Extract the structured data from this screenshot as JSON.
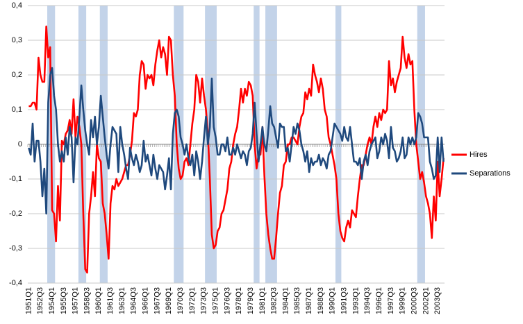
{
  "chart_data": {
    "type": "line",
    "categories": [
      "1951Q1",
      null,
      null,
      null,
      null,
      null,
      "1952Q3",
      null,
      null,
      null,
      null,
      null,
      "1954Q1",
      null,
      null,
      null,
      null,
      null,
      "1955Q3",
      null,
      null,
      null,
      null,
      null,
      "1957Q1",
      null,
      null,
      null,
      null,
      null,
      "1958Q3",
      null,
      null,
      null,
      null,
      null,
      "1960Q1",
      null,
      null,
      null,
      null,
      null,
      "1961Q3",
      null,
      null,
      null,
      null,
      null,
      "1963Q1",
      null,
      null,
      null,
      null,
      null,
      "1964Q3",
      null,
      null,
      null,
      null,
      null,
      "1966Q1",
      null,
      null,
      null,
      null,
      null,
      "1967Q3",
      null,
      null,
      null,
      null,
      null,
      "1969Q1",
      null,
      null,
      null,
      null,
      null,
      "1970Q3",
      null,
      null,
      null,
      null,
      null,
      "1972Q1",
      null,
      null,
      null,
      null,
      null,
      "1973Q3",
      null,
      null,
      null,
      null,
      null,
      "1975Q1",
      null,
      null,
      null,
      null,
      null,
      "1976Q3",
      null,
      null,
      null,
      null,
      null,
      "1978Q1",
      null,
      null,
      null,
      null,
      null,
      "1979Q3",
      null,
      null,
      null,
      null,
      null,
      "1981Q1",
      null,
      null,
      null,
      null,
      null,
      "1982Q3",
      null,
      null,
      null,
      null,
      null,
      "1984Q1",
      null,
      null,
      null,
      null,
      null,
      "1985Q3",
      null,
      null,
      null,
      null,
      null,
      "1987Q1",
      null,
      null,
      null,
      null,
      null,
      "1988Q3",
      null,
      null,
      null,
      null,
      null,
      "1990Q1",
      null,
      null,
      null,
      null,
      null,
      "1991Q3",
      null,
      null,
      null,
      null,
      null,
      "1993Q1",
      null,
      null,
      null,
      null,
      null,
      "1994Q3",
      null,
      null,
      null,
      null,
      null,
      "1996Q1",
      null,
      null,
      null,
      null,
      null,
      "1997Q3",
      null,
      null,
      null,
      null,
      null,
      "1999Q1",
      null,
      null,
      null,
      null,
      null,
      "2000Q3",
      null,
      null,
      null,
      null,
      null,
      "2002Q1",
      null,
      null,
      null,
      null,
      null,
      "2003Q3",
      null,
      null,
      null
    ],
    "series": [
      {
        "name": "Hires",
        "color": "#ff0000",
        "values": [
          0.11,
          0.11,
          0.12,
          0.12,
          0.1,
          0.25,
          0.2,
          0.18,
          0.18,
          0.34,
          0.25,
          0.28,
          -0.19,
          -0.2,
          -0.28,
          -0.12,
          -0.22,
          0.01,
          0.0,
          0.03,
          0.04,
          0.07,
          0.03,
          0.13,
          0.02,
          0.08,
          0.05,
          0.0,
          -0.2,
          -0.36,
          -0.37,
          -0.2,
          -0.15,
          -0.08,
          -0.15,
          0.0,
          -0.04,
          -0.05,
          -0.17,
          -0.2,
          -0.26,
          -0.33,
          -0.17,
          -0.12,
          -0.13,
          -0.1,
          -0.12,
          -0.11,
          -0.1,
          -0.08,
          -0.06,
          -0.06,
          -0.03,
          0.01,
          0.09,
          0.08,
          0.1,
          0.2,
          0.24,
          0.23,
          0.16,
          0.2,
          0.19,
          0.2,
          0.17,
          0.23,
          0.27,
          0.3,
          0.25,
          0.28,
          0.26,
          0.2,
          0.31,
          0.3,
          0.2,
          0.14,
          0.0,
          -0.07,
          -0.1,
          -0.09,
          -0.05,
          -0.04,
          -0.06,
          0.0,
          0.06,
          0.1,
          0.2,
          0.18,
          0.12,
          0.19,
          0.14,
          0.1,
          0.03,
          -0.1,
          -0.26,
          -0.3,
          -0.29,
          -0.25,
          -0.24,
          -0.2,
          -0.19,
          -0.16,
          -0.13,
          -0.07,
          -0.05,
          0.0,
          0.03,
          0.05,
          0.1,
          0.16,
          0.12,
          0.16,
          0.14,
          0.18,
          0.17,
          0.14,
          0.0,
          -0.07,
          -0.03,
          -0.03,
          0.05,
          -0.09,
          -0.2,
          -0.26,
          -0.3,
          -0.33,
          -0.33,
          -0.27,
          -0.2,
          -0.14,
          -0.12,
          -0.06,
          -0.05,
          0.0,
          0.0,
          0.02,
          0.02,
          0.01,
          0.0,
          0.05,
          0.08,
          0.09,
          0.15,
          0.13,
          0.16,
          0.14,
          0.23,
          0.2,
          0.18,
          0.15,
          0.19,
          0.16,
          0.1,
          0.08,
          0.02,
          0.0,
          -0.03,
          -0.06,
          -0.1,
          -0.2,
          -0.25,
          -0.27,
          -0.28,
          -0.24,
          -0.22,
          -0.24,
          -0.19,
          -0.2,
          -0.21,
          -0.15,
          -0.1,
          -0.06,
          -0.06,
          -0.03,
          0.0,
          0.02,
          0.0,
          0.05,
          0.08,
          0.05,
          0.09,
          0.07,
          0.1,
          0.09,
          0.1,
          0.24,
          0.17,
          0.19,
          0.15,
          0.18,
          0.2,
          0.22,
          0.31,
          0.25,
          0.22,
          0.26,
          0.23,
          0.24,
          0.1,
          0.0,
          -0.05,
          -0.1,
          -0.08,
          -0.11,
          -0.15,
          -0.17,
          -0.2,
          -0.27,
          -0.15,
          -0.22,
          -0.05,
          -0.15,
          -0.1,
          -0.04
        ]
      },
      {
        "name": "Separations",
        "color": "#1f497d",
        "values": [
          -0.01,
          -0.03,
          0.06,
          -0.05,
          0.01,
          0.01,
          -0.05,
          -0.15,
          -0.07,
          -0.2,
          0.12,
          0.2,
          0.22,
          0.14,
          0.1,
          0.0,
          -0.05,
          -0.02,
          -0.05,
          0.02,
          -0.03,
          0.05,
          0.02,
          -0.11,
          0.02,
          0.0,
          0.08,
          0.17,
          0.1,
          0.04,
          0.0,
          -0.03,
          0.07,
          0.02,
          0.08,
          0.0,
          0.05,
          0.14,
          0.08,
          0.02,
          -0.03,
          -0.07,
          0.0,
          0.05,
          0.04,
          0.03,
          -0.08,
          0.05,
          0.0,
          -0.03,
          -0.07,
          -0.1,
          -0.01,
          -0.04,
          -0.06,
          -0.03,
          -0.05,
          -0.08,
          -0.06,
          0.01,
          -0.05,
          -0.03,
          -0.06,
          -0.09,
          -0.03,
          -0.07,
          -0.1,
          -0.06,
          -0.07,
          -0.08,
          -0.13,
          -0.09,
          -0.04,
          -0.13,
          0.03,
          0.09,
          0.1,
          0.08,
          0.02,
          0.0,
          -0.03,
          0.0,
          -0.04,
          -0.06,
          -0.03,
          -0.09,
          -0.02,
          -0.05,
          -0.1,
          -0.05,
          0.02,
          0.08,
          0.0,
          0.05,
          0.19,
          0.05,
          0.02,
          -0.03,
          -0.03,
          0.0,
          0.0,
          -0.02,
          0.02,
          -0.03,
          -0.03,
          -0.01,
          -0.03,
          0.0,
          -0.02,
          -0.04,
          -0.02,
          -0.03,
          -0.06,
          -0.02,
          -0.01,
          0.03,
          0.12,
          0.03,
          -0.05,
          0.0,
          0.05,
          0.0,
          -0.02,
          0.04,
          0.11,
          0.06,
          0.05,
          0.02,
          -0.01,
          0.06,
          0.05,
          0.05,
          -0.02,
          -0.01,
          -0.05,
          0.0,
          0.05,
          0.03,
          0.06,
          0.04,
          0.0,
          -0.02,
          -0.05,
          -0.02,
          -0.08,
          -0.04,
          -0.06,
          -0.05,
          -0.05,
          -0.03,
          -0.06,
          -0.04,
          -0.05,
          -0.07,
          -0.03,
          -0.02,
          0.02,
          0.06,
          0.05,
          0.04,
          0.03,
          0.01,
          0.05,
          0.02,
          0.01,
          0.05,
          0.0,
          -0.05,
          -0.05,
          -0.06,
          -0.04,
          -0.1,
          -0.05,
          -0.03,
          -0.06,
          -0.02,
          0.0,
          0.01,
          0.02,
          -0.04,
          -0.02,
          0.02,
          0.0,
          0.03,
          0.01,
          -0.04,
          0.05,
          -0.01,
          -0.02,
          -0.05,
          -0.04,
          -0.02,
          0.02,
          -0.04,
          -0.03,
          0.02,
          0.0,
          0.02,
          0.0,
          0.02,
          0.09,
          0.08,
          0.06,
          0.02,
          0.02,
          0.02,
          -0.05,
          -0.07,
          -0.1,
          -0.09,
          0.02,
          -0.08,
          0.02,
          -0.05
        ]
      }
    ],
    "recession_bands": [
      [
        10,
        13
      ],
      [
        26,
        29
      ],
      [
        37,
        40
      ],
      [
        75,
        79
      ],
      [
        91,
        96
      ],
      [
        116,
        118
      ],
      [
        122,
        127
      ],
      [
        158,
        160
      ],
      [
        200,
        203
      ]
    ],
    "band_color": "#c3d3e9",
    "ylim": [
      -0.4,
      0.4
    ],
    "yticks": [
      {
        "value": -0.4,
        "label": "-0,4"
      },
      {
        "value": -0.3,
        "label": "-0,3"
      },
      {
        "value": -0.2,
        "label": "-0,2"
      },
      {
        "value": -0.1,
        "label": "-0,1"
      },
      0,
      {
        "value": 0.1,
        "label": "0,1"
      },
      {
        "value": 0.2,
        "label": "0,2"
      },
      {
        "value": 0.3,
        "label": "0,3"
      },
      {
        "value": 0.4,
        "label": "0,4"
      }
    ],
    "grid": true,
    "legend": "right"
  }
}
